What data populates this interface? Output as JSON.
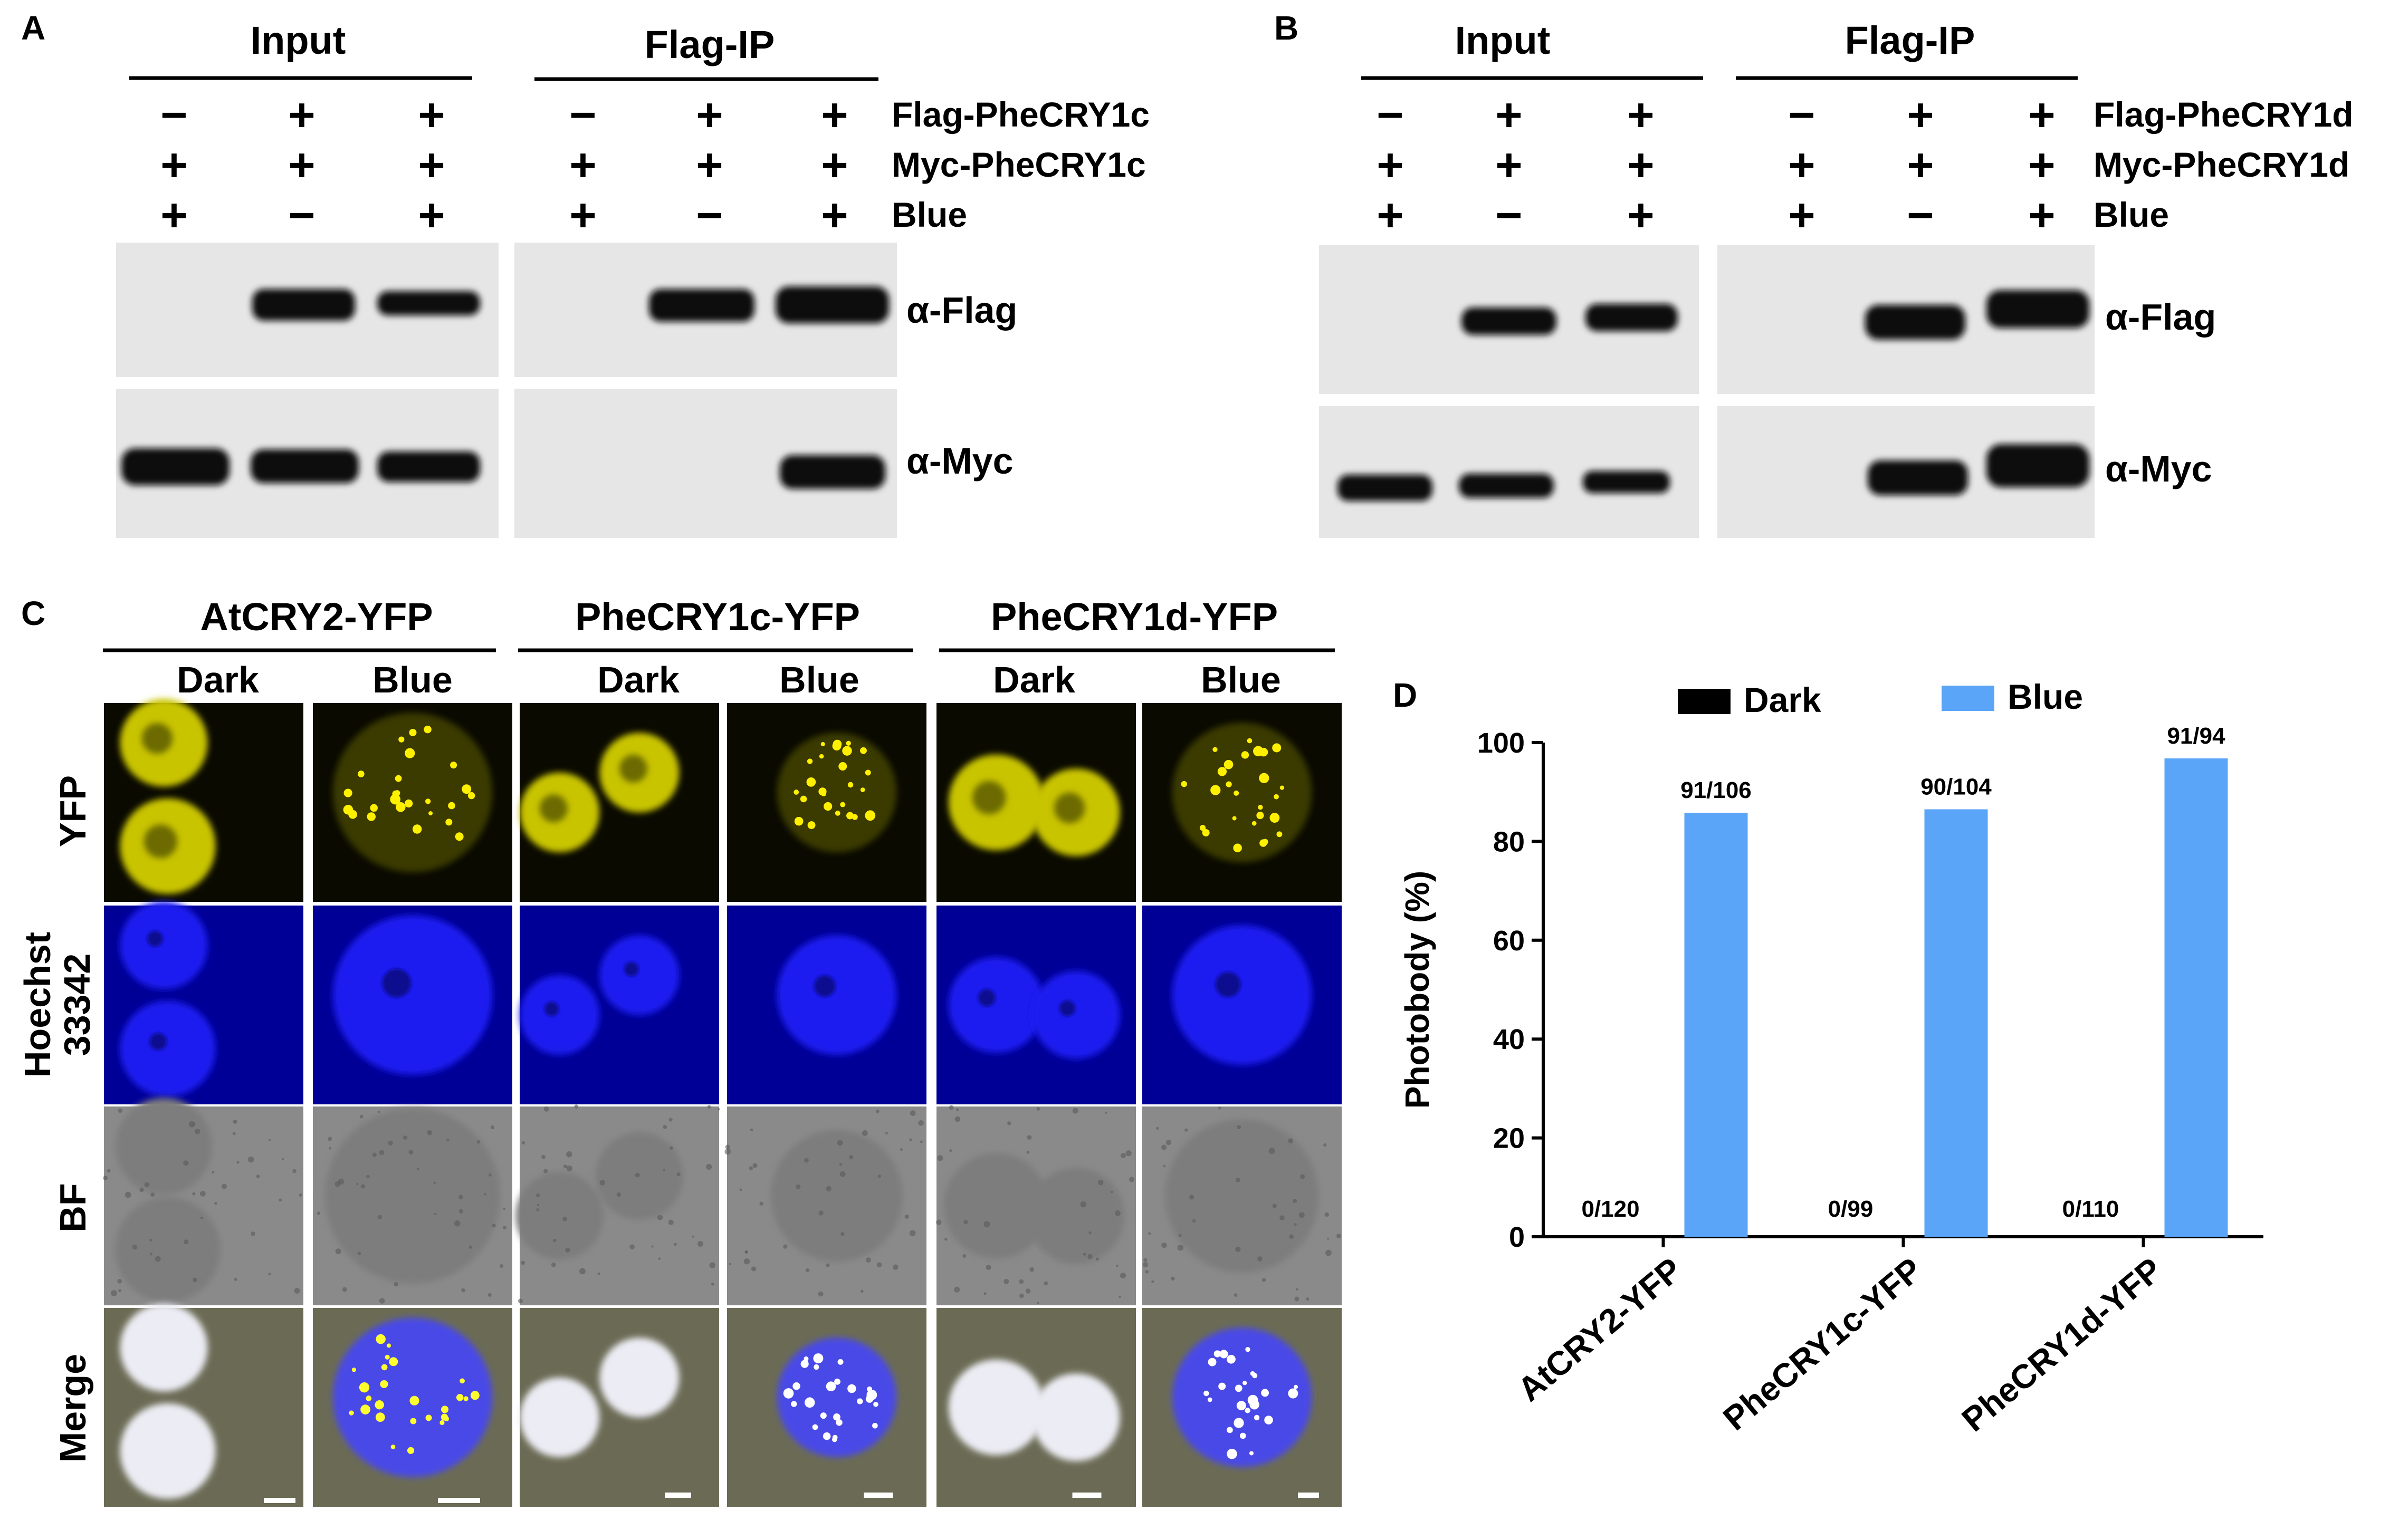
{
  "panelA": {
    "label": "A",
    "groups": [
      "Input",
      "Flag-IP"
    ],
    "rows": [
      {
        "label": "Flag-PheCRY1c",
        "signs": [
          "−",
          "+",
          "+",
          "−",
          "+",
          "+"
        ]
      },
      {
        "label": "Myc-PheCRY1c",
        "signs": [
          "+",
          "+",
          "+",
          "+",
          "+",
          "+"
        ]
      },
      {
        "label": "Blue",
        "signs": [
          "+",
          "−",
          "+",
          "+",
          "−",
          "+"
        ]
      }
    ],
    "blots": [
      "α-Flag",
      "α-Myc"
    ]
  },
  "panelB": {
    "label": "B",
    "groups": [
      "Input",
      "Flag-IP"
    ],
    "rows": [
      {
        "label": "Flag-PheCRY1d",
        "signs": [
          "−",
          "+",
          "+",
          "−",
          "+",
          "+"
        ]
      },
      {
        "label": "Myc-PheCRY1d",
        "signs": [
          "+",
          "+",
          "+",
          "+",
          "+",
          "+"
        ]
      },
      {
        "label": "Blue",
        "signs": [
          "+",
          "−",
          "+",
          "+",
          "−",
          "+"
        ]
      }
    ],
    "blots": [
      "α-Flag",
      "α-Myc"
    ]
  },
  "panelC": {
    "label": "C",
    "constructs": [
      "AtCRY2-YFP",
      "PheCRY1c-YFP",
      "PheCRY1d-YFP"
    ],
    "conditions": [
      "Dark",
      "Blue"
    ],
    "channels": [
      "YFP",
      "Hoechst",
      "33342",
      "BF",
      "Merge"
    ]
  },
  "panelD": {
    "label": "D",
    "colors": {
      "dark": "#000000",
      "blue": "#5aa5f7"
    },
    "chart_data": {
      "type": "bar",
      "categories": [
        "AtCRY2-YFP",
        "PheCRY1c-YFP",
        "PheCRY1d-YFP"
      ],
      "series": [
        {
          "name": "Dark",
          "values": [
            0,
            0,
            0
          ],
          "labels": [
            "0/120",
            "0/99",
            "0/110"
          ]
        },
        {
          "name": "Blue",
          "values": [
            85.8,
            86.5,
            96.8
          ],
          "labels": [
            "91/106",
            "90/104",
            "91/94"
          ]
        }
      ],
      "ylabel": "Photobody (%)",
      "ylim": [
        0,
        100
      ],
      "yticks": [
        "0",
        "20",
        "40",
        "60",
        "80",
        "100"
      ],
      "legend": "top"
    }
  }
}
